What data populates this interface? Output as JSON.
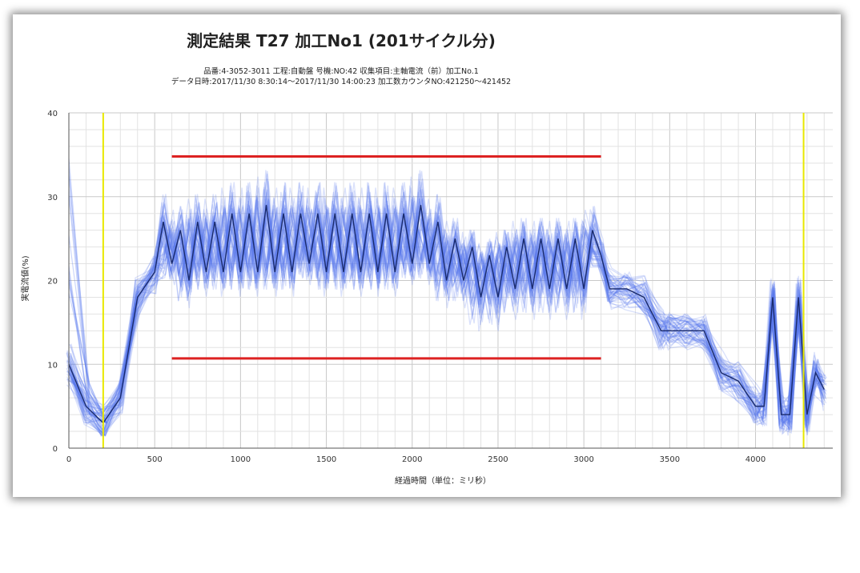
{
  "chart_data": {
    "type": "line",
    "title": "測定結果 T27 加工No1 (201サイクル分)",
    "subtitle_lines": [
      "品番:4-3052-3011 工程:自動盤 号機:NO:42 収集項目:主軸電流（前）加工No.1",
      "データ日時:2017/11/30 8:30:14～2017/11/30 14:00:23 加工数カウンタNO:421250～421452"
    ],
    "xlabel": "経過時間（単位：ミリ秒）",
    "ylabel": "実電流値(%)",
    "xlim": [
      0,
      4450
    ],
    "ylim": [
      0,
      40
    ],
    "x_ticks": [
      0,
      500,
      1000,
      1500,
      2000,
      2500,
      3000,
      3500,
      4000
    ],
    "y_ticks": [
      0,
      10,
      20,
      30,
      40
    ],
    "grid": true,
    "legend": "none",
    "cycle_count": 201,
    "reference_lines": {
      "upper_limit": {
        "y": 34.8,
        "x_range": [
          600,
          3100
        ],
        "color": "#dd2222"
      },
      "lower_limit": {
        "y": 10.7,
        "x_range": [
          600,
          3100
        ],
        "color": "#dd2222"
      },
      "start_marker": {
        "x": 200,
        "color": "#e8e800"
      },
      "end_marker": {
        "x": 4280,
        "color": "#e8e800"
      }
    },
    "representative_series": {
      "name": "",
      "x": [
        0,
        100,
        200,
        300,
        400,
        500,
        550,
        600,
        650,
        700,
        750,
        800,
        850,
        900,
        950,
        1000,
        1050,
        1100,
        1150,
        1200,
        1250,
        1300,
        1350,
        1400,
        1450,
        1500,
        1550,
        1600,
        1650,
        1700,
        1750,
        1800,
        1850,
        1900,
        1950,
        2000,
        2050,
        2100,
        2150,
        2200,
        2250,
        2300,
        2350,
        2400,
        2450,
        2500,
        2550,
        2600,
        2650,
        2700,
        2750,
        2800,
        2850,
        2900,
        2950,
        3000,
        3050,
        3100,
        3150,
        3250,
        3350,
        3450,
        3500,
        3600,
        3700,
        3800,
        3900,
        4000,
        4050,
        4100,
        4150,
        4200,
        4250,
        4300,
        4350,
        4400
      ],
      "y": [
        10,
        5,
        3,
        6,
        18,
        21,
        27,
        22,
        26,
        20,
        27,
        21,
        27,
        21,
        28,
        21,
        28,
        21,
        29,
        21,
        28,
        21,
        28,
        22,
        28,
        21,
        28,
        21,
        28,
        21,
        28,
        21,
        28,
        21,
        28,
        22,
        29,
        22,
        27,
        20,
        25,
        20,
        24,
        18,
        23,
        18,
        24,
        19,
        25,
        19,
        25,
        19,
        25,
        19,
        25,
        19,
        26,
        23,
        19,
        19,
        18,
        14,
        14,
        14,
        14,
        9,
        8,
        5,
        5,
        18,
        4,
        4,
        18,
        4,
        9,
        7
      ],
      "color": "#1a2b6d"
    },
    "series_color": "#5577ee"
  }
}
